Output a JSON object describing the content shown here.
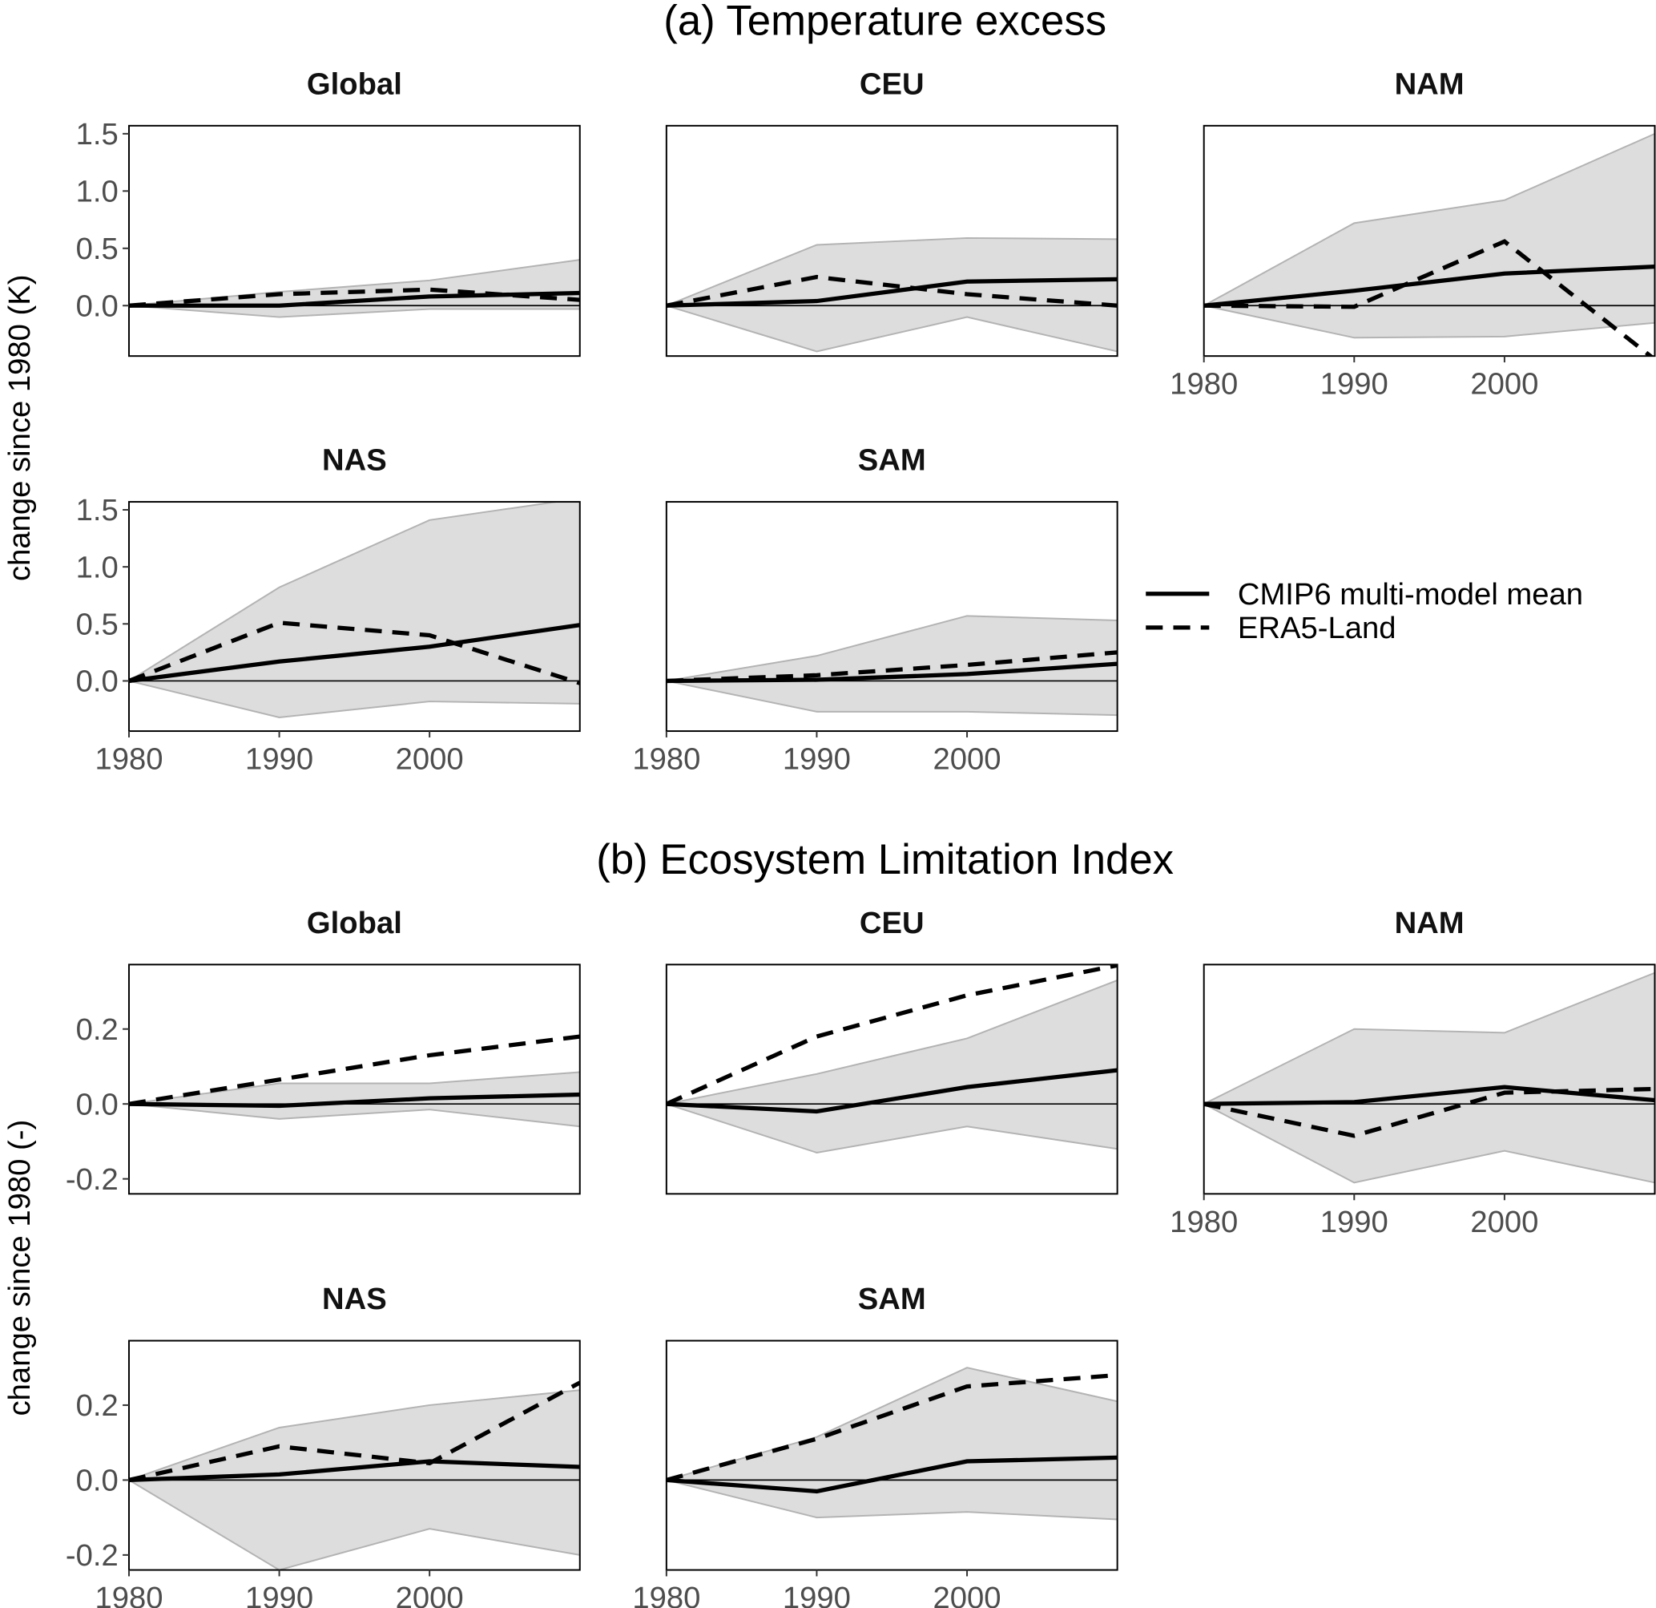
{
  "chart_data": [
    {
      "type": "area",
      "section": "(a) Temperature excess",
      "ylabel": "change since 1980 (K)",
      "x": [
        1980,
        1990,
        2000,
        2010
      ],
      "xlim": [
        1980,
        2010
      ],
      "xticks": [
        "1980",
        "1990",
        "2000"
      ],
      "ylim": [
        -0.44,
        1.57
      ],
      "yticks": [
        "0.0",
        "0.5",
        "1.0",
        "1.5"
      ],
      "ytick_values": [
        0,
        0.5,
        1,
        1.5
      ],
      "panels": [
        {
          "title": "Global",
          "mean": [
            0,
            0.0,
            0.08,
            0.11
          ],
          "era5": [
            0,
            0.1,
            0.14,
            0.05
          ],
          "upper": [
            0,
            0.12,
            0.22,
            0.4
          ],
          "lower": [
            0,
            -0.1,
            -0.03,
            -0.03
          ]
        },
        {
          "title": "CEU",
          "mean": [
            0,
            0.04,
            0.21,
            0.23
          ],
          "era5": [
            0,
            0.25,
            0.1,
            0.0
          ],
          "upper": [
            0,
            0.53,
            0.59,
            0.58
          ],
          "lower": [
            0,
            -0.4,
            -0.1,
            -0.4
          ]
        },
        {
          "title": "NAM",
          "mean": [
            0,
            0.13,
            0.28,
            0.34
          ],
          "era5": [
            0,
            -0.01,
            0.56,
            -0.47
          ],
          "upper": [
            0,
            0.72,
            0.92,
            1.5
          ],
          "lower": [
            0,
            -0.28,
            -0.27,
            -0.15
          ]
        },
        {
          "title": "NAS",
          "mean": [
            0,
            0.17,
            0.3,
            0.49
          ],
          "era5": [
            0,
            0.51,
            0.4,
            -0.02
          ],
          "upper": [
            0,
            0.82,
            1.41,
            1.6
          ],
          "lower": [
            0,
            -0.32,
            -0.18,
            -0.2
          ]
        },
        {
          "title": "SAM",
          "mean": [
            0,
            0.01,
            0.06,
            0.15
          ],
          "era5": [
            0,
            0.05,
            0.14,
            0.25
          ],
          "upper": [
            0,
            0.22,
            0.57,
            0.53
          ],
          "lower": [
            0,
            -0.27,
            -0.27,
            -0.3
          ]
        }
      ]
    },
    {
      "type": "area",
      "section": "(b) Ecosystem Limitation Index",
      "ylabel": "change since 1980 (-)",
      "x": [
        1980,
        1990,
        2000,
        2010
      ],
      "xlim": [
        1980,
        2010
      ],
      "xticks": [
        "1980",
        "1990",
        "2000"
      ],
      "ylim": [
        -0.24,
        0.372
      ],
      "yticks": [
        "-0.2",
        "0.0",
        "0.2"
      ],
      "ytick_values": [
        -0.2,
        0,
        0.2
      ],
      "panels": [
        {
          "title": "Global",
          "mean": [
            0,
            -0.005,
            0.015,
            0.025
          ],
          "era5": [
            0,
            0.065,
            0.13,
            0.18
          ],
          "upper": [
            0,
            0.055,
            0.055,
            0.085
          ],
          "lower": [
            0,
            -0.04,
            -0.015,
            -0.06
          ]
        },
        {
          "title": "CEU",
          "mean": [
            0,
            -0.02,
            0.045,
            0.09
          ],
          "era5": [
            0,
            0.18,
            0.29,
            0.37
          ],
          "upper": [
            0,
            0.08,
            0.175,
            0.33
          ],
          "lower": [
            0,
            -0.13,
            -0.06,
            -0.12
          ]
        },
        {
          "title": "NAM",
          "mean": [
            0,
            0.005,
            0.045,
            0.01
          ],
          "era5": [
            0,
            -0.085,
            0.03,
            0.04
          ],
          "upper": [
            0,
            0.2,
            0.19,
            0.35
          ],
          "lower": [
            0,
            -0.21,
            -0.125,
            -0.21
          ]
        },
        {
          "title": "NAS",
          "mean": [
            0,
            0.015,
            0.05,
            0.035
          ],
          "era5": [
            0,
            0.09,
            0.045,
            0.26
          ],
          "upper": [
            0,
            0.14,
            0.2,
            0.24
          ],
          "lower": [
            0,
            -0.24,
            -0.13,
            -0.2
          ]
        },
        {
          "title": "SAM",
          "mean": [
            0,
            -0.03,
            0.05,
            0.06
          ],
          "era5": [
            0,
            0.11,
            0.25,
            0.28
          ],
          "upper": [
            0,
            0.115,
            0.3,
            0.21
          ],
          "lower": [
            0,
            -0.1,
            -0.085,
            -0.105
          ]
        }
      ]
    }
  ],
  "legend": {
    "entries": [
      "CMIP6 multi-model mean",
      "ERA5-Land"
    ],
    "placement": "right"
  },
  "colors": {
    "band": "#dddddd",
    "band_edge": "#b3b3b3",
    "line": "#000000"
  }
}
